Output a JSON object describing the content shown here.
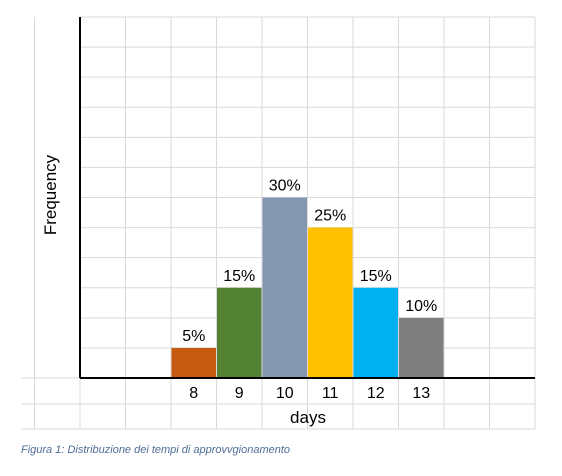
{
  "chart_data": {
    "type": "bar",
    "categories": [
      "8",
      "9",
      "10",
      "11",
      "12",
      "13"
    ],
    "values": [
      5,
      15,
      30,
      25,
      15,
      10
    ],
    "data_labels": [
      "5%",
      "15%",
      "30%",
      "25%",
      "15%",
      "10%"
    ],
    "colors": [
      "#c55a11",
      "#548235",
      "#8497b0",
      "#ffc000",
      "#00b0f0",
      "#7f7f7f"
    ],
    "xlabel": "days",
    "ylabel": "Frequency",
    "ylim": [
      0,
      60
    ],
    "grid": true,
    "legend": "none"
  },
  "caption": "Figura 1: Distribuzione dei tempi di approvvgionamento"
}
